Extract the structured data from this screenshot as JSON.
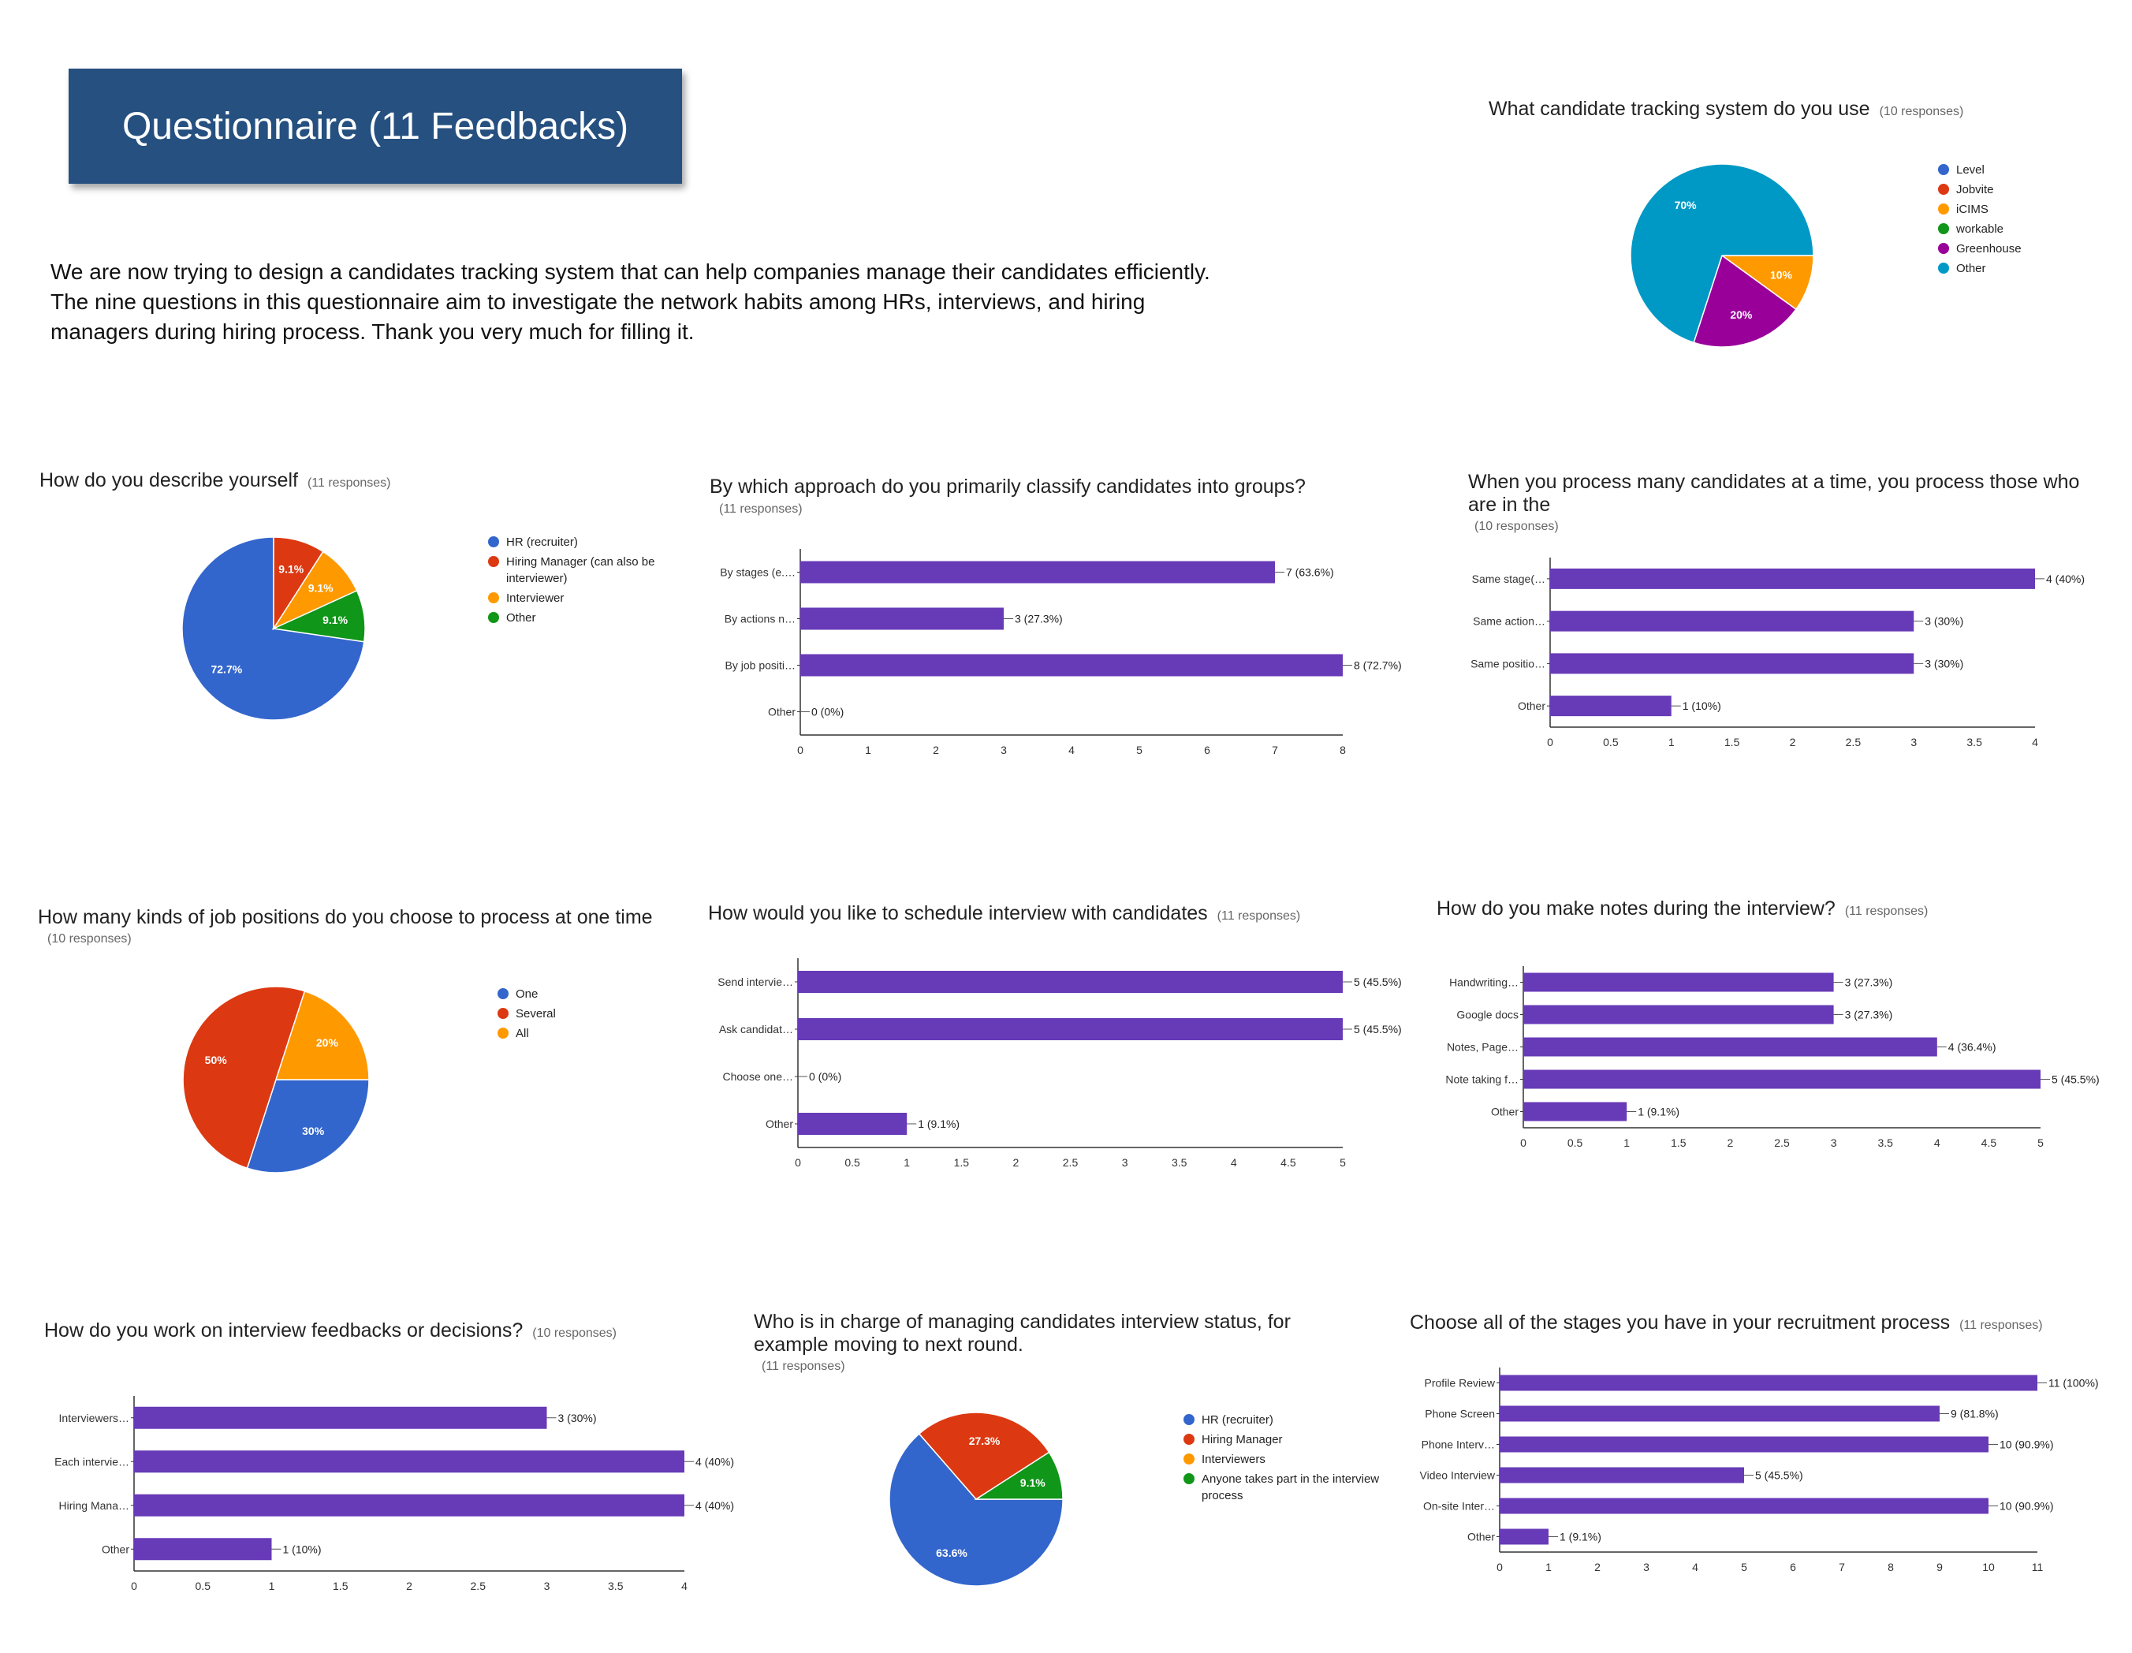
{
  "header": {
    "banner_title": "Questionnaire (11 Feedbacks)",
    "intro_lines": [
      "We are now trying to design a candidates tracking system that can help companies manage their candidates efficiently.",
      "The nine questions in this questionnaire aim to investigate the network habits among HRs, interviews, and hiring",
      "managers during hiring process. Thank you very much for filling it."
    ]
  },
  "colors": {
    "bar": "#673ab7",
    "pie_blue": "#3366cc",
    "pie_red": "#dc3912",
    "pie_orange": "#ff9900",
    "pie_green": "#109618",
    "pie_purple": "#990099",
    "pie_teal": "#0099c6"
  },
  "chart_data": [
    {
      "id": "tracking",
      "type": "pie",
      "title": "What candidate tracking system do you use",
      "responses": "(10 responses)",
      "labels": [
        "Level",
        "Jobvite",
        "iCIMS",
        "workable",
        "Greenhouse",
        "Other"
      ],
      "colors": [
        "#3366cc",
        "#dc3912",
        "#ff9900",
        "#109618",
        "#990099",
        "#0099c6"
      ],
      "values": [
        0,
        0,
        10,
        0,
        20,
        70
      ],
      "slice_labels": [
        "",
        "",
        "10%",
        "",
        "20%",
        "70%"
      ]
    },
    {
      "id": "describe",
      "type": "pie",
      "title": "How do you describe yourself",
      "responses": "(11 responses)",
      "labels": [
        "HR (recruiter)",
        "Hiring Manager (can also be interviewer)",
        "Interviewer",
        "Other"
      ],
      "colors": [
        "#3366cc",
        "#dc3912",
        "#ff9900",
        "#109618"
      ],
      "values": [
        72.7,
        9.1,
        9.1,
        9.1
      ],
      "slice_labels": [
        "72.7%",
        "9.1%",
        "9.1%",
        "9.1%"
      ]
    },
    {
      "id": "approach",
      "type": "bar",
      "title": "By which approach do you primarily classify candidates into groups?",
      "responses": "(11 responses)",
      "categories": [
        "By stages (e.…",
        "By actions n…",
        "By job positi…",
        "Other"
      ],
      "values": [
        7,
        3,
        8,
        0
      ],
      "data_labels": [
        "7 (63.6%)",
        "3 (27.3%)",
        "8 (72.7%)",
        "0 (0%)"
      ],
      "xlim": [
        0,
        8
      ],
      "ticks": [
        "0",
        "1",
        "2",
        "3",
        "4",
        "5",
        "6",
        "7",
        "8"
      ]
    },
    {
      "id": "process",
      "type": "bar",
      "title": "When you process many candidates at a time, you process those who are in the",
      "responses": "(10 responses)",
      "categories": [
        "Same stage(…",
        "Same action…",
        "Same positio…",
        "Other"
      ],
      "values": [
        4,
        3,
        3,
        1
      ],
      "data_labels": [
        "4 (40%)",
        "3 (30%)",
        "3 (30%)",
        "1 (10%)"
      ],
      "xlim": [
        0,
        4
      ],
      "ticks": [
        "0",
        "0.5",
        "1",
        "1.5",
        "2",
        "2.5",
        "3",
        "3.5",
        "4"
      ]
    },
    {
      "id": "kinds",
      "type": "pie",
      "title": "How many kinds of job positions do you choose to process at one time",
      "responses": "(10 responses)",
      "labels": [
        "One",
        "Several",
        "All"
      ],
      "colors": [
        "#3366cc",
        "#dc3912",
        "#ff9900"
      ],
      "values": [
        30,
        50,
        20
      ],
      "slice_labels": [
        "30%",
        "50%",
        "20%"
      ]
    },
    {
      "id": "schedule",
      "type": "bar",
      "title": "How would you like to schedule interview with candidates",
      "responses": "(11 responses)",
      "categories": [
        "Send intervie…",
        "Ask candidat…",
        "Choose one…",
        "Other"
      ],
      "values": [
        5,
        5,
        0,
        1
      ],
      "data_labels": [
        "5 (45.5%)",
        "5 (45.5%)",
        "0 (0%)",
        "1 (9.1%)"
      ],
      "xlim": [
        0,
        5
      ],
      "ticks": [
        "0",
        "0.5",
        "1",
        "1.5",
        "2",
        "2.5",
        "3",
        "3.5",
        "4",
        "4.5",
        "5"
      ]
    },
    {
      "id": "notes",
      "type": "bar",
      "title": "How do you make notes during the interview?",
      "responses": "(11 responses)",
      "categories": [
        "Handwriting…",
        "Google docs",
        "Notes, Page…",
        "Note taking f…",
        "Other"
      ],
      "values": [
        3,
        3,
        4,
        5,
        1
      ],
      "data_labels": [
        "3 (27.3%)",
        "3 (27.3%)",
        "4 (36.4%)",
        "5 (45.5%)",
        "1 (9.1%)"
      ],
      "xlim": [
        0,
        5
      ],
      "ticks": [
        "0",
        "0.5",
        "1",
        "1.5",
        "2",
        "2.5",
        "3",
        "3.5",
        "4",
        "4.5",
        "5"
      ]
    },
    {
      "id": "feedbacks",
      "type": "bar",
      "title": "How do you work on interview feedbacks or decisions?",
      "responses": "(10 responses)",
      "categories": [
        "Interviewers…",
        "Each intervie…",
        "Hiring Mana…",
        "Other"
      ],
      "values": [
        3,
        4,
        4,
        1
      ],
      "data_labels": [
        "3 (30%)",
        "4 (40%)",
        "4 (40%)",
        "1 (10%)"
      ],
      "xlim": [
        0,
        4
      ],
      "ticks": [
        "0",
        "0.5",
        "1",
        "1.5",
        "2",
        "2.5",
        "3",
        "3.5",
        "4"
      ]
    },
    {
      "id": "status",
      "type": "pie",
      "title": "Who is in charge of managing candidates interview status, for example moving to next round.",
      "responses": "(11 responses)",
      "labels": [
        "HR (recruiter)",
        "Hiring Manager",
        "Interviewers",
        "Anyone takes part in the interview process"
      ],
      "colors": [
        "#3366cc",
        "#dc3912",
        "#ff9900",
        "#109618"
      ],
      "values": [
        63.6,
        27.3,
        0,
        9.1
      ],
      "slice_labels": [
        "63.6%",
        "27.3%",
        "",
        "9.1%"
      ]
    },
    {
      "id": "stages",
      "type": "bar",
      "title": "Choose all of the stages you have in your recruitment process",
      "responses": "(11 responses)",
      "categories": [
        "Profile Review",
        "Phone Screen",
        "Phone Interv…",
        "Video Interview",
        "On-site Inter…",
        "Other"
      ],
      "values": [
        11,
        9,
        10,
        5,
        10,
        1
      ],
      "data_labels": [
        "11 (100%)",
        "9 (81.8%)",
        "10 (90.9%)",
        "5 (45.5%)",
        "10 (90.9%)",
        "1 (9.1%)"
      ],
      "xlim": [
        0,
        11
      ],
      "ticks": [
        "0",
        "1",
        "2",
        "3",
        "4",
        "5",
        "6",
        "7",
        "8",
        "9",
        "10",
        "11"
      ]
    }
  ]
}
